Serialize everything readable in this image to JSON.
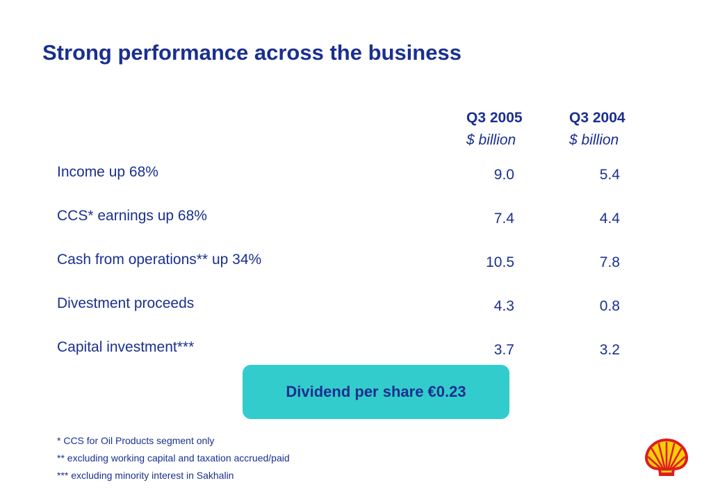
{
  "slide": {
    "title": "Strong performance across the business"
  },
  "table": {
    "columns": [
      {
        "period": "Q3 2005",
        "unit": "$ billion"
      },
      {
        "period": "Q3 2004",
        "unit": "$ billion"
      }
    ],
    "rows": [
      {
        "label": "Income up 68%",
        "q3_2005": "9.0",
        "q3_2004": "5.4"
      },
      {
        "label": "CCS* earnings up 68%",
        "q3_2005": "7.4",
        "q3_2004": "4.4"
      },
      {
        "label": "Cash from operations** up 34%",
        "q3_2005": "10.5",
        "q3_2004": "7.8"
      },
      {
        "label": "Divestment proceeds",
        "q3_2005": "4.3",
        "q3_2004": "0.8"
      },
      {
        "label": "Capital investment***",
        "q3_2005": "3.7",
        "q3_2004": "3.2"
      }
    ]
  },
  "callout": {
    "text": "Dividend per share €0.23",
    "color": "#33cccc"
  },
  "footnotes": [
    "* CCS for Oil Products segment only",
    "** excluding working capital and taxation accrued/paid",
    "*** excluding minority interest in Sakhalin"
  ],
  "colors": {
    "text": "#1a2f8f",
    "logo_red": "#dd1d21",
    "logo_yellow": "#fbce07"
  },
  "logo": {
    "icon": "shell-pecten-icon"
  }
}
